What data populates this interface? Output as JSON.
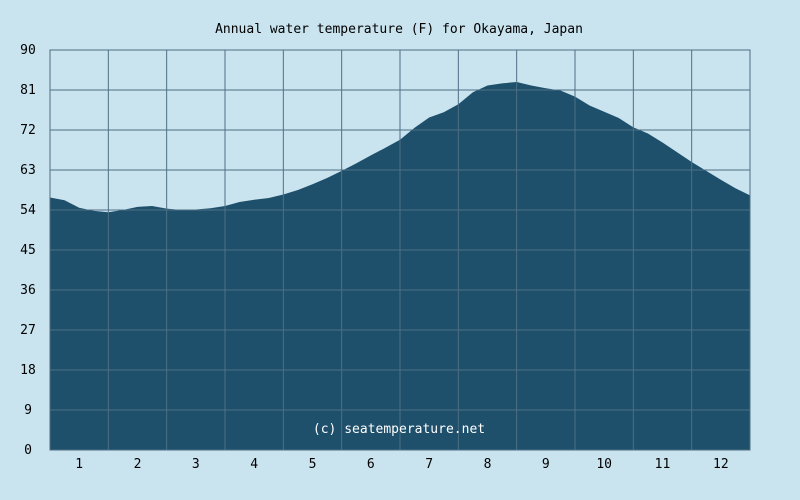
{
  "chart_data": {
    "type": "area",
    "title": "Annual water temperature (F) for Okayama, Japan",
    "xlabel": "",
    "ylabel": "",
    "categories": [
      "1",
      "2",
      "3",
      "4",
      "5",
      "6",
      "7",
      "8",
      "9",
      "10",
      "11",
      "12"
    ],
    "xlim": [
      0.5,
      12.5
    ],
    "ylim": [
      0,
      90
    ],
    "yticks": [
      0,
      9,
      18,
      27,
      36,
      45,
      54,
      63,
      72,
      81,
      90
    ],
    "grid": true,
    "legend": "none",
    "fill_color": "#1e4f6b",
    "background_color": "#c9e3ef",
    "grid_color": "#4f6f85",
    "x": [
      0.5,
      0.75,
      1.0,
      1.25,
      1.5,
      1.75,
      2.0,
      2.25,
      2.5,
      2.75,
      3.0,
      3.25,
      3.5,
      3.75,
      4.0,
      4.25,
      4.5,
      4.75,
      5.0,
      5.25,
      5.5,
      5.75,
      6.0,
      6.25,
      6.5,
      6.75,
      7.0,
      7.25,
      7.5,
      7.75,
      8.0,
      8.25,
      8.5,
      8.75,
      9.0,
      9.25,
      9.5,
      9.75,
      10.0,
      10.25,
      10.5,
      10.75,
      11.0,
      11.25,
      11.5,
      11.75,
      12.0,
      12.25,
      12.5
    ],
    "values": [
      56.8,
      56.2,
      54.5,
      53.8,
      53.5,
      54.0,
      54.7,
      54.9,
      54.3,
      54.0,
      54.1,
      54.4,
      54.9,
      55.8,
      56.3,
      56.7,
      57.5,
      58.5,
      59.8,
      61.2,
      62.8,
      64.5,
      66.3,
      68.0,
      69.8,
      72.5,
      74.8,
      76.0,
      77.8,
      80.5,
      82.0,
      82.5,
      82.8,
      82.0,
      81.4,
      80.9,
      79.5,
      77.5,
      76.1,
      74.7,
      72.6,
      71.2,
      69.2,
      67.0,
      64.8,
      62.8,
      60.8,
      58.9,
      57.3
    ],
    "watermark": "(c) seatemperature.net"
  }
}
